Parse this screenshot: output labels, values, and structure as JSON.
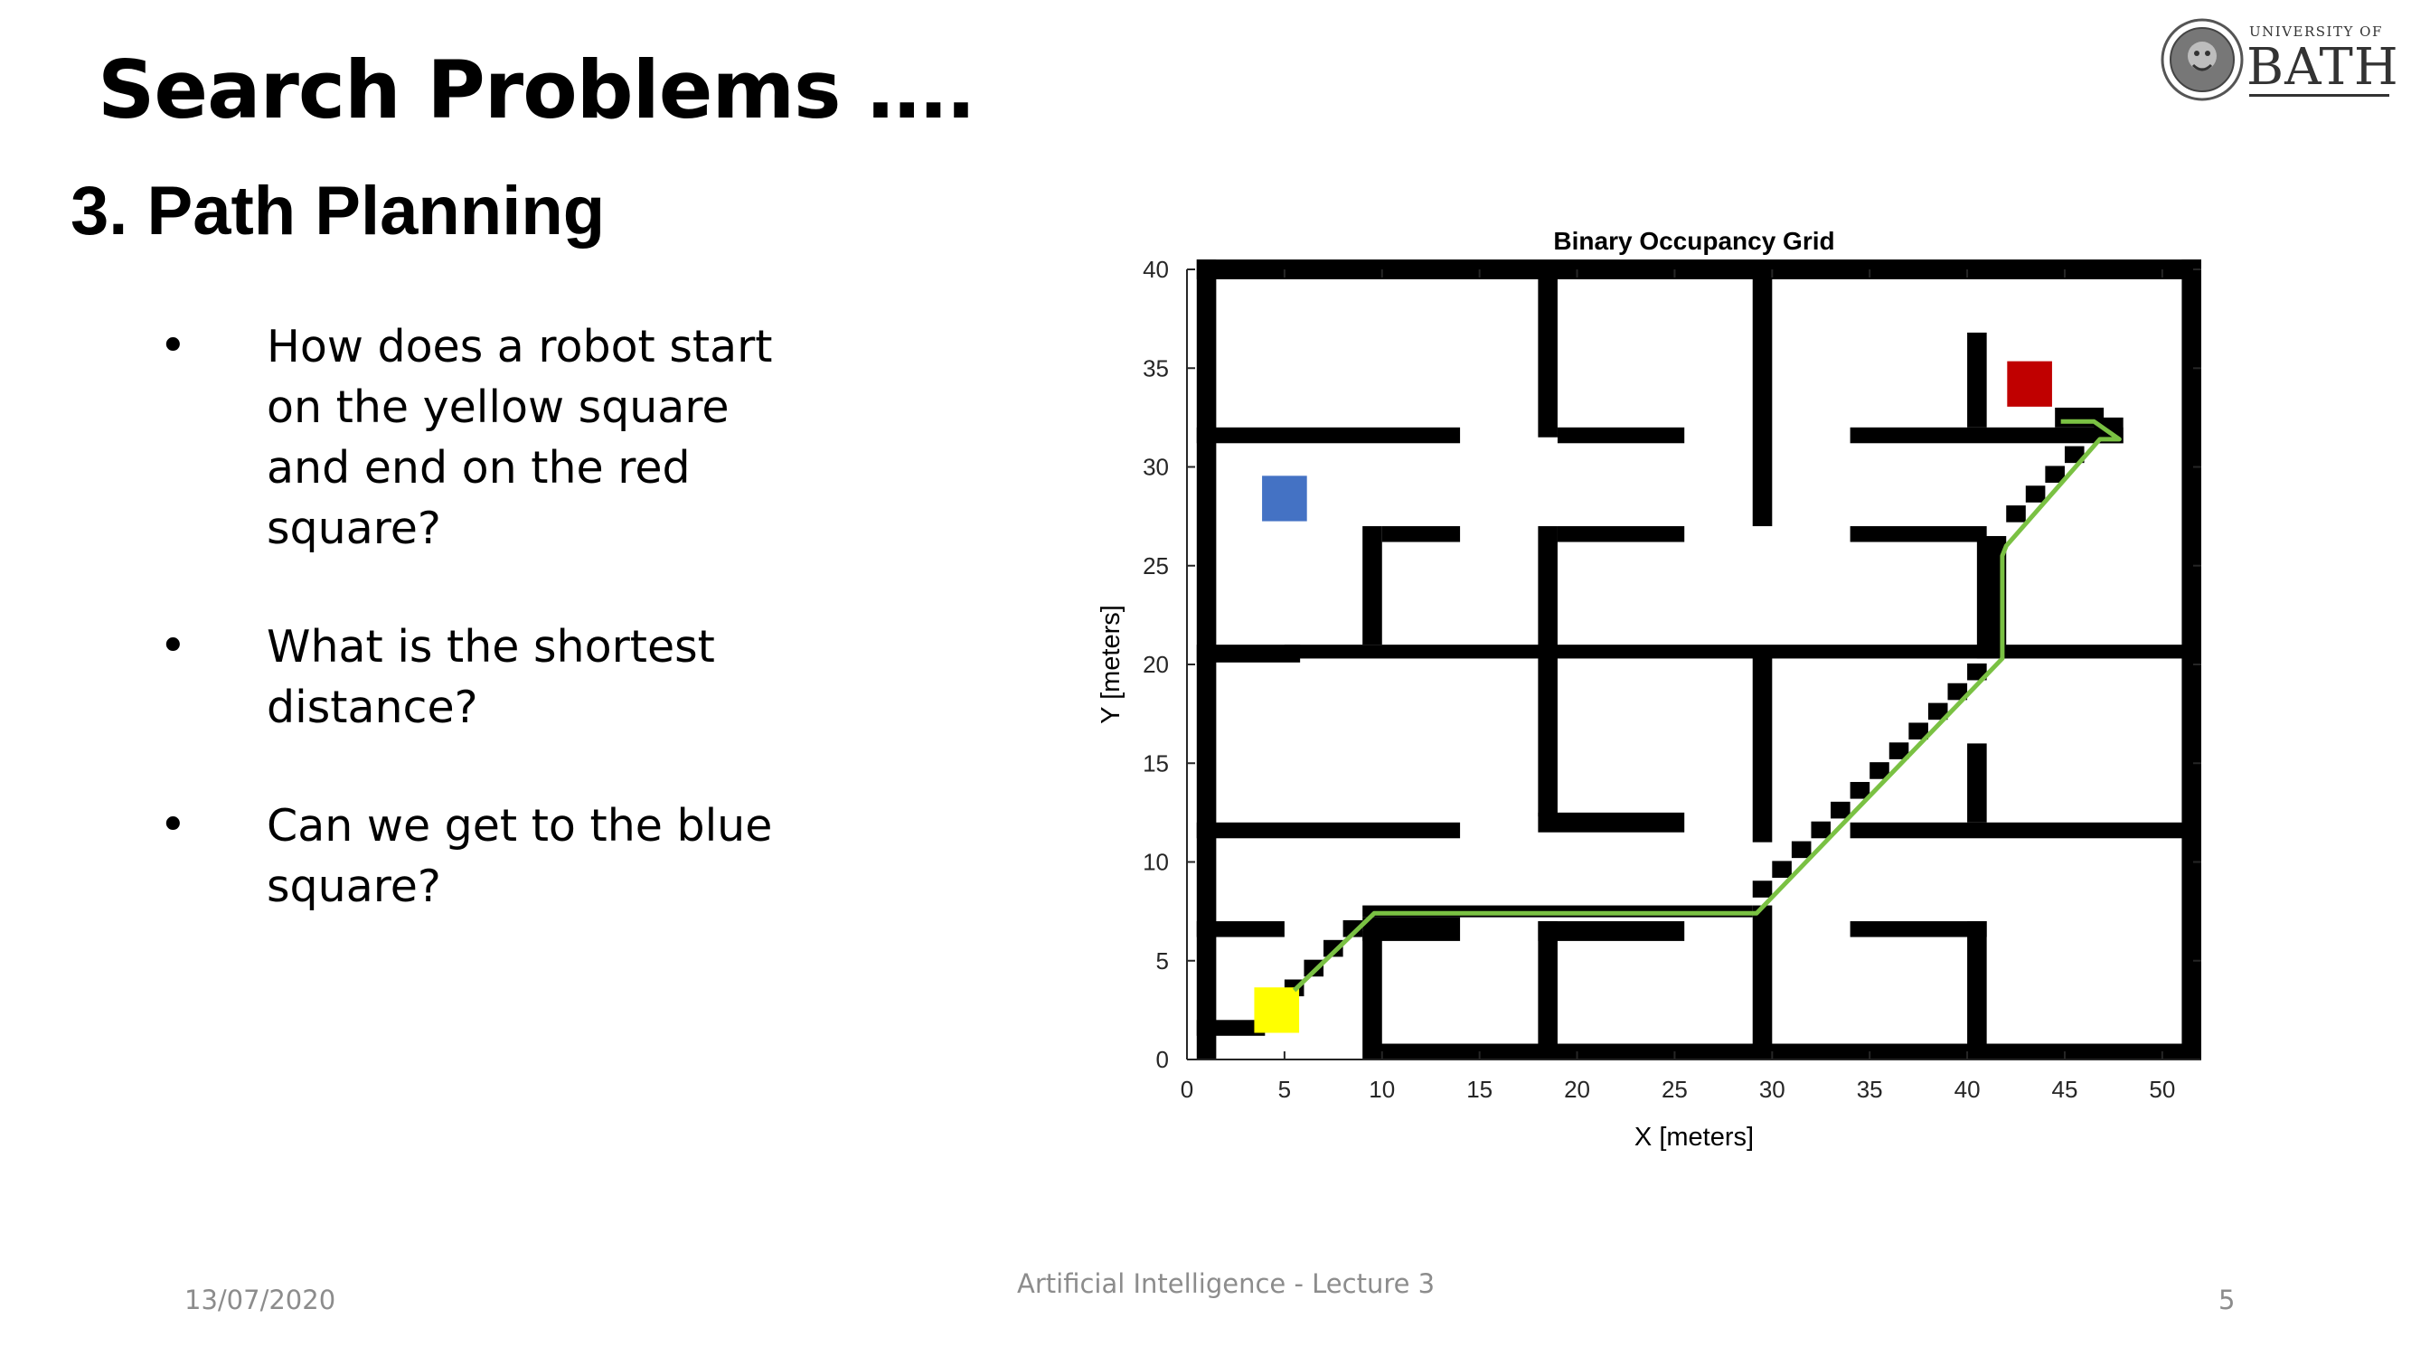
{
  "slide": {
    "title": "Search Problems ….",
    "subtitle": "3. Path Planning",
    "bullets": [
      {
        "symbol": "•",
        "text": "How does a robot start on the yellow square and end on the red square?"
      },
      {
        "symbol": "•",
        "text": "What is the shortest distance?"
      },
      {
        "symbol": "•",
        "text": "Can we get to the blue square?"
      }
    ]
  },
  "logo": {
    "line1": "UNIVERSITY OF",
    "line2": "BATH",
    "icon": "university-crest-icon"
  },
  "footer": {
    "date": "13/07/2020",
    "center": "Artificial Intelligence - Lecture 3",
    "page": "5"
  },
  "chart_data": {
    "type": "heatmap",
    "title": "Binary Occupancy Grid",
    "xlabel": "X [meters]",
    "ylabel": "Y [meters]",
    "xlim": [
      0,
      52
    ],
    "ylim": [
      0,
      40
    ],
    "xticks": [
      0,
      5,
      10,
      15,
      20,
      25,
      30,
      35,
      40,
      45,
      50
    ],
    "yticks": [
      0,
      5,
      10,
      15,
      20,
      25,
      30,
      35,
      40
    ],
    "occupied_color": "#000000",
    "free_color": "#ffffff",
    "walls": [
      [
        0.5,
        40.5,
        52,
        39.5
      ],
      [
        0.5,
        40.5,
        1.5,
        0
      ],
      [
        51,
        40.5,
        52,
        0
      ],
      [
        9.5,
        0.8,
        52,
        0
      ],
      [
        18,
        40,
        19,
        31.5
      ],
      [
        19,
        32,
        25.5,
        31.2
      ],
      [
        29,
        40,
        30,
        27
      ],
      [
        0.5,
        32,
        14,
        31.2
      ],
      [
        9,
        27,
        10,
        21
      ],
      [
        10,
        27,
        14,
        26.2
      ],
      [
        18,
        27,
        19,
        20.5
      ],
      [
        19,
        27,
        25.5,
        26.2
      ],
      [
        0.5,
        21,
        5.8,
        20.1
      ],
      [
        5,
        21,
        52,
        20.3
      ],
      [
        34,
        27,
        41,
        26.2
      ],
      [
        40.5,
        26.5,
        42,
        20.3
      ],
      [
        40,
        36.8,
        41,
        32
      ],
      [
        34,
        32,
        48,
        31.2
      ],
      [
        44.5,
        33,
        47,
        32
      ],
      [
        46.5,
        32.5,
        48,
        31.2
      ],
      [
        18,
        20.5,
        19,
        12.3
      ],
      [
        18,
        12.5,
        25.5,
        11.5
      ],
      [
        29,
        20.5,
        30,
        11
      ],
      [
        0.5,
        12,
        14,
        11.2
      ],
      [
        34,
        12,
        52,
        11.2
      ],
      [
        40,
        16,
        41,
        12
      ],
      [
        0.5,
        7,
        5,
        6.2
      ],
      [
        9,
        7.8,
        29,
        7.2
      ],
      [
        9,
        7.2,
        14,
        6
      ],
      [
        9,
        6.5,
        10,
        0
      ],
      [
        18,
        7,
        25.5,
        6
      ],
      [
        18,
        7,
        19,
        0
      ],
      [
        29,
        7.8,
        30,
        0
      ],
      [
        34,
        7,
        41,
        6.2
      ],
      [
        40,
        7,
        41,
        0
      ],
      [
        0.5,
        2,
        4,
        1.2
      ]
    ],
    "stair_cells": [
      [
        5,
        3.2
      ],
      [
        6,
        4.2
      ],
      [
        7,
        5.2
      ],
      [
        8,
        6.2
      ],
      [
        29,
        8.2
      ],
      [
        30,
        9.2
      ],
      [
        31,
        10.2
      ],
      [
        32,
        11.2
      ],
      [
        33,
        12.2
      ],
      [
        34,
        13.2
      ],
      [
        35,
        14.2
      ],
      [
        36,
        15.2
      ],
      [
        37,
        16.2
      ],
      [
        38,
        17.2
      ],
      [
        39,
        18.2
      ],
      [
        40,
        19.2
      ],
      [
        42,
        27.2
      ],
      [
        43,
        28.2
      ],
      [
        44,
        29.2
      ],
      [
        45,
        30.2
      ]
    ],
    "markers": [
      {
        "name": "start",
        "x": 4.6,
        "y": 2.5,
        "color": "#ffff00"
      },
      {
        "name": "goal",
        "x": 43.2,
        "y": 34.2,
        "color": "#c00000"
      },
      {
        "name": "blue-target",
        "x": 5,
        "y": 28.4,
        "color": "#4472c4"
      }
    ],
    "path": {
      "color": "#7ac143",
      "x": [
        5.5,
        9.6,
        29.2,
        41.8,
        41.8,
        42,
        46.8,
        47.8,
        46.5,
        44.8
      ],
      "y": [
        3.5,
        7.4,
        7.4,
        20.3,
        25.5,
        26,
        31.4,
        31.4,
        32.3,
        32.3
      ]
    }
  }
}
